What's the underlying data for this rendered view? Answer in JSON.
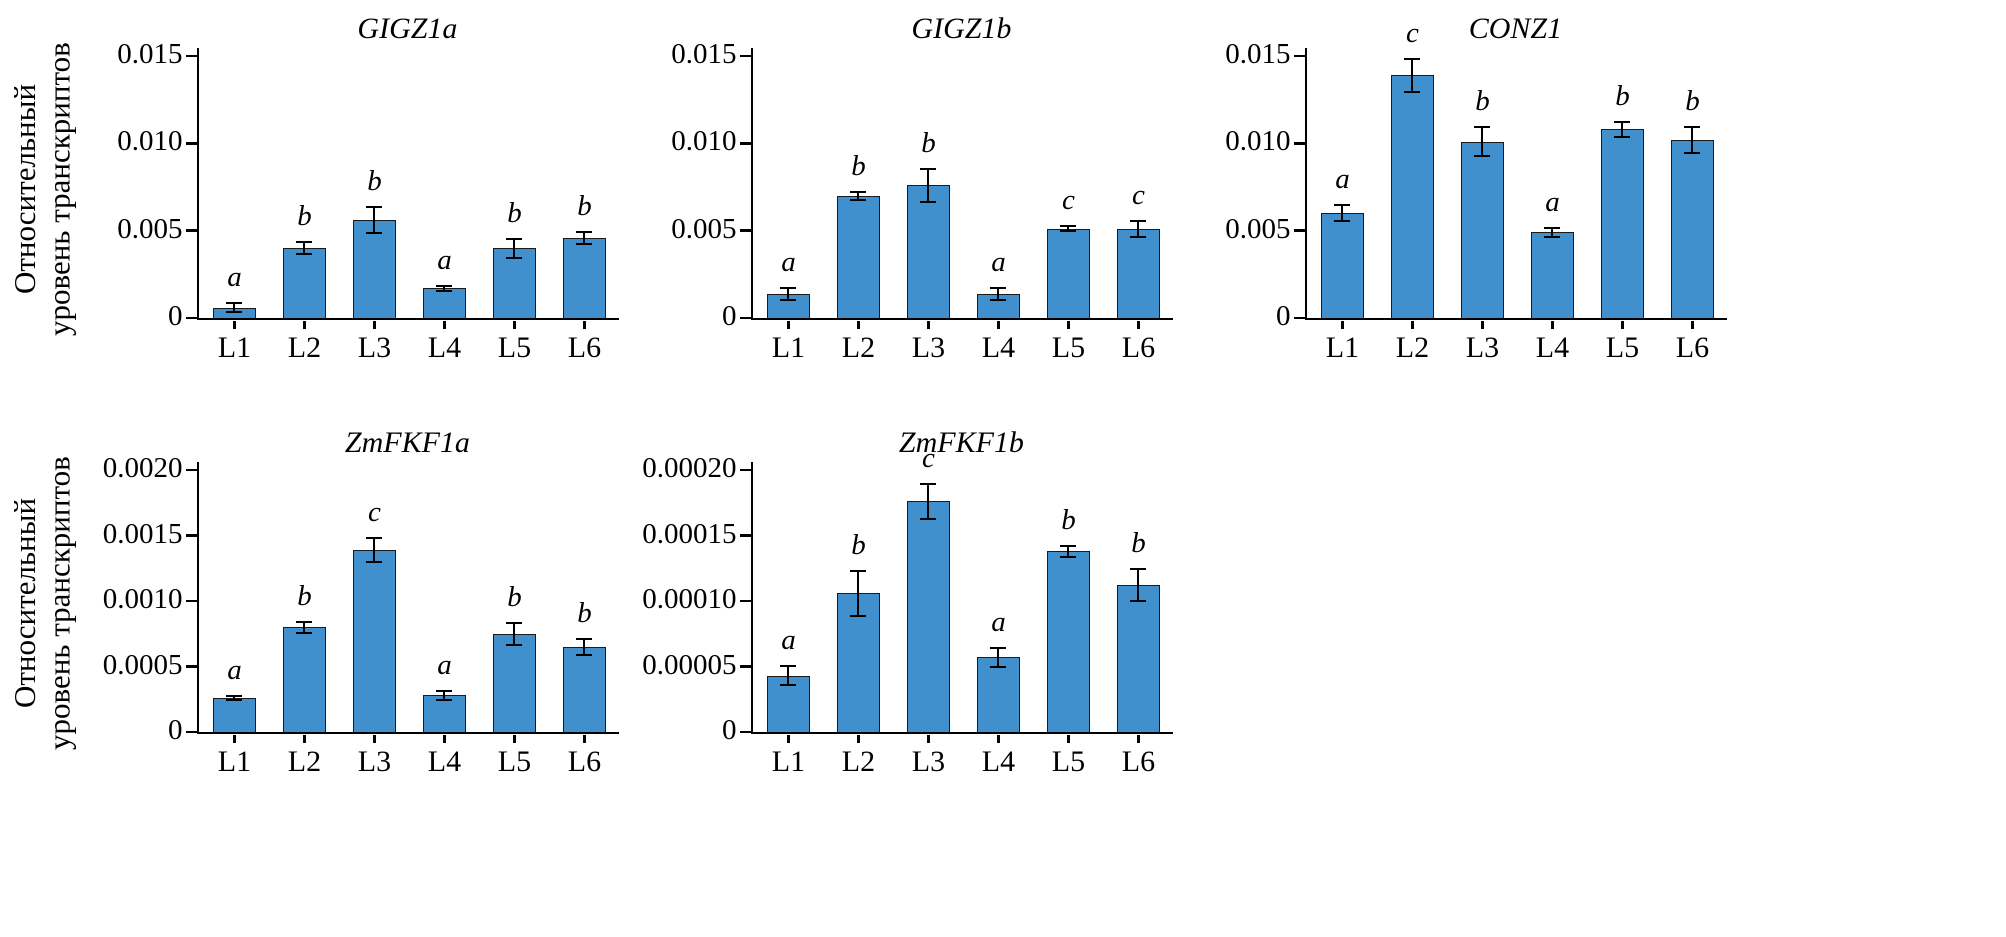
{
  "figure": {
    "background": "#ffffff",
    "bar_fill": "#3F90CC",
    "bar_border": "#1a1a1a",
    "y_axis_label_lines": [
      "Относительный",
      "уровень транскриптов"
    ]
  },
  "chart_data": [
    {
      "type": "bar",
      "title": "GIGZ1a",
      "row": 1,
      "categories": [
        "L1",
        "L2",
        "L3",
        "L4",
        "L5",
        "L6"
      ],
      "values": [
        0.0006,
        0.004,
        0.0056,
        0.0017,
        0.004,
        0.0046
      ],
      "errors": [
        0.0003,
        0.0004,
        0.0008,
        0.0002,
        0.0006,
        0.0004
      ],
      "letters": [
        "a",
        "b",
        "b",
        "a",
        "b",
        "b"
      ],
      "xlabel": "",
      "ylabel": "Относительный уровень транскриптов",
      "ylim": [
        0,
        0.015
      ],
      "yticks": [
        0,
        0.005,
        0.01,
        0.015
      ],
      "ytick_labels": [
        "0",
        "0.005",
        "0.010",
        "0.015"
      ],
      "grid": false,
      "legend": false
    },
    {
      "type": "bar",
      "title": "GIGZ1b",
      "row": 1,
      "categories": [
        "L1",
        "L2",
        "L3",
        "L4",
        "L5",
        "L6"
      ],
      "values": [
        0.0014,
        0.007,
        0.0076,
        0.0014,
        0.0051,
        0.0051
      ],
      "errors": [
        0.0004,
        0.0003,
        0.001,
        0.0004,
        0.0002,
        0.0005
      ],
      "letters": [
        "a",
        "b",
        "b",
        "a",
        "c",
        "c"
      ],
      "xlabel": "",
      "ylabel": "Относительный уровень транскриптов",
      "ylim": [
        0,
        0.015
      ],
      "yticks": [
        0,
        0.005,
        0.01,
        0.015
      ],
      "ytick_labels": [
        "0",
        "0.005",
        "0.010",
        "0.015"
      ],
      "grid": false,
      "legend": false
    },
    {
      "type": "bar",
      "title": "CONZ1",
      "row": 1,
      "categories": [
        "L1",
        "L2",
        "L3",
        "L4",
        "L5",
        "L6"
      ],
      "values": [
        0.006,
        0.0139,
        0.0101,
        0.0049,
        0.0108,
        0.0102
      ],
      "errors": [
        0.0005,
        0.001,
        0.0009,
        0.0003,
        0.0005,
        0.0008
      ],
      "letters": [
        "a",
        "c",
        "b",
        "a",
        "b",
        "b"
      ],
      "xlabel": "",
      "ylabel": "Относительный уровень транскриптов",
      "ylim": [
        0,
        0.015
      ],
      "yticks": [
        0,
        0.005,
        0.01,
        0.015
      ],
      "ytick_labels": [
        "0",
        "0.005",
        "0.010",
        "0.015"
      ],
      "grid": false,
      "legend": false
    },
    {
      "type": "bar",
      "title": "ZmFKF1a",
      "row": 2,
      "categories": [
        "L1",
        "L2",
        "L3",
        "L4",
        "L5",
        "L6"
      ],
      "values": [
        0.00026,
        0.0008,
        0.00139,
        0.00028,
        0.00075,
        0.00065
      ],
      "errors": [
        2e-05,
        5e-05,
        0.0001,
        4e-05,
        9e-05,
        7e-05
      ],
      "letters": [
        "a",
        "b",
        "c",
        "a",
        "b",
        "b"
      ],
      "xlabel": "",
      "ylabel": "Относительный уровень транскриптов",
      "ylim": [
        0,
        0.002
      ],
      "yticks": [
        0,
        0.0005,
        0.001,
        0.0015,
        0.002
      ],
      "ytick_labels": [
        "0",
        "0.0005",
        "0.0010",
        "0.0015",
        "0.0020"
      ],
      "grid": false,
      "legend": false
    },
    {
      "type": "bar",
      "title": "ZmFKF1b",
      "row": 2,
      "categories": [
        "L1",
        "L2",
        "L3",
        "L4",
        "L5",
        "L6"
      ],
      "values": [
        4.3e-05,
        0.000106,
        0.000176,
        5.7e-05,
        0.000138,
        0.000112
      ],
      "errors": [
        8e-06,
        1.8e-05,
        1.4e-05,
        8e-06,
        5e-06,
        1.3e-05
      ],
      "letters": [
        "a",
        "b",
        "c",
        "a",
        "b",
        "b"
      ],
      "xlabel": "",
      "ylabel": "Относительный уровень транскриптов",
      "ylim": [
        0,
        0.0002
      ],
      "yticks": [
        0,
        5e-05,
        0.0001,
        0.00015,
        0.0002
      ],
      "ytick_labels": [
        "0",
        "0.00005",
        "0.00010",
        "0.00015",
        "0.00020"
      ],
      "grid": false,
      "legend": false
    }
  ]
}
